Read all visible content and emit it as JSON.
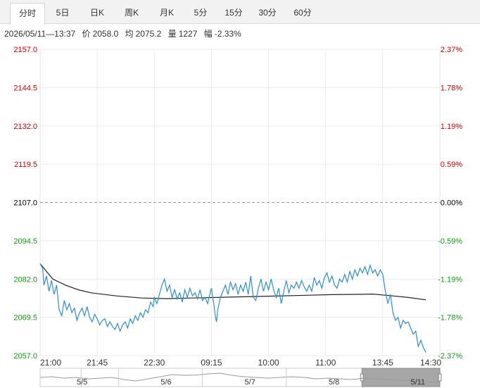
{
  "tabs": [
    {
      "label": "分时",
      "active": true
    },
    {
      "label": "5日",
      "active": false
    },
    {
      "label": "日K",
      "active": false
    },
    {
      "label": "周K",
      "active": false
    },
    {
      "label": "月K",
      "active": false
    },
    {
      "label": "5分",
      "active": false
    },
    {
      "label": "15分",
      "active": false
    },
    {
      "label": "30分",
      "active": false
    },
    {
      "label": "60分",
      "active": false
    }
  ],
  "info": {
    "datetime": "2026/05/11—13:37",
    "price_label": "价",
    "price": "2058.0",
    "avg_label": "均",
    "avg": "2075.2",
    "volume_label": "量",
    "volume": "1227",
    "change_label": "幅",
    "change": "-2.33%"
  },
  "colors": {
    "up": "#e00000",
    "down": "#1a9a1a",
    "neutral": "#000000",
    "price_line": "#2b8fd6",
    "avg_line": "#222222"
  },
  "chart_data": {
    "type": "line",
    "prev_close": 2107.0,
    "ylim": [
      2057.0,
      2157.0
    ],
    "y_ticks": [
      {
        "value": 2157.0,
        "label": "2157.0",
        "pct": "2.37%"
      },
      {
        "value": 2144.5,
        "label": "2144.5",
        "pct": "1.78%"
      },
      {
        "value": 2132.0,
        "label": "2132.0",
        "pct": "1.19%"
      },
      {
        "value": 2119.5,
        "label": "2119.5",
        "pct": "0.59%"
      },
      {
        "value": 2107.0,
        "label": "2107.0",
        "pct": "0.00%"
      },
      {
        "value": 2094.5,
        "label": "2094.5",
        "pct": "-0.59%"
      },
      {
        "value": 2082.0,
        "label": "2082.0",
        "pct": "-1.19%"
      },
      {
        "value": 2069.5,
        "label": "2069.5",
        "pct": "-1.78%"
      },
      {
        "value": 2057.0,
        "label": "2057.0",
        "pct": "-2.37%"
      }
    ],
    "x_ticks": [
      "21:00",
      "21:45",
      "22:30",
      "09:15",
      "10:00",
      "11:00",
      "13:45",
      "14:30"
    ],
    "x_tick_index": [
      0,
      45,
      90,
      135,
      180,
      225,
      270,
      315
    ],
    "x_max": 315,
    "series": [
      {
        "role": "price",
        "points": [
          [
            0,
            2087.0
          ],
          [
            2,
            2085.5
          ],
          [
            3,
            2080.0
          ],
          [
            5,
            2083.0
          ],
          [
            7,
            2078.0
          ],
          [
            9,
            2081.5
          ],
          [
            11,
            2077.0
          ],
          [
            13,
            2080.0
          ],
          [
            15,
            2072.0
          ],
          [
            17,
            2070.0
          ],
          [
            19,
            2075.0
          ],
          [
            21,
            2072.0
          ],
          [
            23,
            2074.0
          ],
          [
            25,
            2071.0
          ],
          [
            27,
            2072.5
          ],
          [
            29,
            2068.5
          ],
          [
            31,
            2071.0
          ],
          [
            33,
            2072.5
          ],
          [
            35,
            2070.0
          ],
          [
            37,
            2073.0
          ],
          [
            39,
            2069.5
          ],
          [
            41,
            2068.0
          ],
          [
            43,
            2070.5
          ],
          [
            45,
            2069.0
          ],
          [
            47,
            2067.0
          ],
          [
            49,
            2068.5
          ],
          [
            51,
            2069.0
          ],
          [
            53,
            2066.5
          ],
          [
            55,
            2068.0
          ],
          [
            57,
            2066.5
          ],
          [
            59,
            2065.5
          ],
          [
            61,
            2067.5
          ],
          [
            63,
            2065.0
          ],
          [
            65,
            2067.0
          ],
          [
            67,
            2068.0
          ],
          [
            69,
            2066.0
          ],
          [
            71,
            2069.0
          ],
          [
            73,
            2067.5
          ],
          [
            75,
            2070.0
          ],
          [
            77,
            2068.5
          ],
          [
            79,
            2071.0
          ],
          [
            81,
            2069.5
          ],
          [
            83,
            2072.0
          ],
          [
            85,
            2071.0
          ],
          [
            87,
            2074.5
          ],
          [
            89,
            2073.0
          ],
          [
            90,
            2076.0
          ],
          [
            92,
            2074.0
          ],
          [
            94,
            2077.0
          ],
          [
            96,
            2080.0
          ],
          [
            98,
            2082.0
          ],
          [
            100,
            2078.0
          ],
          [
            102,
            2080.0
          ],
          [
            104,
            2076.0
          ],
          [
            106,
            2078.5
          ],
          [
            108,
            2075.5
          ],
          [
            110,
            2077.5
          ],
          [
            112,
            2074.5
          ],
          [
            114,
            2078.5
          ],
          [
            116,
            2076.0
          ],
          [
            118,
            2079.0
          ],
          [
            120,
            2076.5
          ],
          [
            122,
            2077.5
          ],
          [
            124,
            2075.5
          ],
          [
            126,
            2078.5
          ],
          [
            128,
            2075.0
          ],
          [
            130,
            2076.0
          ],
          [
            132,
            2074.0
          ],
          [
            134,
            2077.5
          ],
          [
            135,
            2079.0
          ],
          [
            136,
            2076.0
          ],
          [
            137,
            2073.5
          ],
          [
            138,
            2070.0
          ],
          [
            139,
            2068.0
          ],
          [
            140,
            2072.0
          ],
          [
            142,
            2076.0
          ],
          [
            144,
            2078.0
          ],
          [
            146,
            2080.0
          ],
          [
            148,
            2077.0
          ],
          [
            150,
            2081.0
          ],
          [
            152,
            2078.5
          ],
          [
            154,
            2080.5
          ],
          [
            156,
            2077.0
          ],
          [
            158,
            2080.0
          ],
          [
            160,
            2078.0
          ],
          [
            162,
            2081.0
          ],
          [
            164,
            2077.0
          ],
          [
            166,
            2083.0
          ],
          [
            168,
            2076.0
          ],
          [
            170,
            2075.0
          ],
          [
            172,
            2079.0
          ],
          [
            174,
            2082.0
          ],
          [
            176,
            2078.0
          ],
          [
            178,
            2081.0
          ],
          [
            180,
            2078.5
          ],
          [
            182,
            2082.0
          ],
          [
            184,
            2078.5
          ],
          [
            186,
            2076.0
          ],
          [
            188,
            2079.0
          ],
          [
            190,
            2074.0
          ],
          [
            192,
            2078.0
          ],
          [
            194,
            2081.5
          ],
          [
            196,
            2077.5
          ],
          [
            198,
            2080.0
          ],
          [
            200,
            2079.0
          ],
          [
            202,
            2081.0
          ],
          [
            204,
            2079.0
          ],
          [
            206,
            2081.5
          ],
          [
            208,
            2079.5
          ],
          [
            210,
            2078.0
          ],
          [
            212,
            2080.0
          ],
          [
            214,
            2078.0
          ],
          [
            216,
            2082.5
          ],
          [
            218,
            2080.0
          ],
          [
            220,
            2081.5
          ],
          [
            222,
            2079.0
          ],
          [
            224,
            2082.5
          ],
          [
            226,
            2084.0
          ],
          [
            228,
            2081.0
          ],
          [
            230,
            2083.0
          ],
          [
            232,
            2080.0
          ],
          [
            234,
            2079.0
          ],
          [
            236,
            2082.0
          ],
          [
            238,
            2081.0
          ],
          [
            240,
            2083.5
          ],
          [
            242,
            2081.0
          ],
          [
            244,
            2084.5
          ],
          [
            246,
            2082.0
          ],
          [
            248,
            2085.0
          ],
          [
            250,
            2083.0
          ],
          [
            252,
            2085.5
          ],
          [
            254,
            2084.0
          ],
          [
            256,
            2086.0
          ],
          [
            258,
            2083.5
          ],
          [
            260,
            2086.5
          ],
          [
            262,
            2084.0
          ],
          [
            264,
            2085.0
          ],
          [
            266,
            2083.0
          ],
          [
            268,
            2085.0
          ],
          [
            270,
            2083.5
          ],
          [
            272,
            2078.0
          ],
          [
            274,
            2074.0
          ],
          [
            276,
            2077.0
          ],
          [
            278,
            2071.0
          ],
          [
            280,
            2068.5
          ],
          [
            282,
            2069.5
          ],
          [
            284,
            2066.0
          ],
          [
            286,
            2068.5
          ],
          [
            288,
            2067.5
          ],
          [
            290,
            2068.0
          ],
          [
            292,
            2066.0
          ],
          [
            294,
            2064.0
          ],
          [
            296,
            2065.0
          ],
          [
            298,
            2060.0
          ],
          [
            300,
            2062.0
          ],
          [
            302,
            2059.5
          ],
          [
            304,
            2058.0
          ]
        ]
      },
      {
        "role": "average",
        "points": [
          [
            0,
            2087.0
          ],
          [
            10,
            2082.0
          ],
          [
            20,
            2080.0
          ],
          [
            30,
            2078.5
          ],
          [
            40,
            2077.5
          ],
          [
            60,
            2076.5
          ],
          [
            80,
            2075.8
          ],
          [
            100,
            2075.6
          ],
          [
            120,
            2075.8
          ],
          [
            150,
            2076.1
          ],
          [
            180,
            2076.4
          ],
          [
            210,
            2076.7
          ],
          [
            230,
            2076.9
          ],
          [
            250,
            2077.0
          ],
          [
            262,
            2077.1
          ],
          [
            275,
            2076.6
          ],
          [
            290,
            2076.0
          ],
          [
            304,
            2075.2
          ]
        ]
      }
    ],
    "day_labels": [
      {
        "label": "5/5",
        "x": 2.5
      },
      {
        "label": "5/6",
        "x": 23.5
      },
      {
        "label": "5/7",
        "x": 44.5
      },
      {
        "label": "5/8",
        "x": 65.5
      },
      {
        "label": "5/11",
        "x": 86.5
      }
    ],
    "navigator": {
      "selected_label": "5/11",
      "overview": [
        [
          0,
          0.55
        ],
        [
          3,
          0.6
        ],
        [
          6,
          0.5
        ],
        [
          9,
          0.55
        ],
        [
          12,
          0.45
        ],
        [
          15,
          0.5
        ],
        [
          18,
          0.55
        ],
        [
          21,
          0.4
        ],
        [
          24,
          0.3
        ],
        [
          27,
          0.45
        ],
        [
          30,
          0.6
        ],
        [
          33,
          0.75
        ],
        [
          36,
          0.7
        ],
        [
          39,
          0.72
        ],
        [
          42,
          0.8
        ],
        [
          45,
          0.85
        ],
        [
          48,
          0.7
        ],
        [
          51,
          0.6
        ],
        [
          54,
          0.55
        ],
        [
          57,
          0.5
        ],
        [
          60,
          0.55
        ],
        [
          63,
          0.6
        ],
        [
          66,
          0.55
        ],
        [
          69,
          0.45
        ],
        [
          72,
          0.5
        ],
        [
          75,
          0.45
        ],
        [
          78,
          0.4
        ],
        [
          81,
          0.5
        ],
        [
          84,
          0.45
        ],
        [
          87,
          0.4
        ],
        [
          90,
          0.35
        ],
        [
          93,
          0.3
        ],
        [
          96,
          0.25
        ],
        [
          100,
          0.2
        ]
      ],
      "selected_range": [
        80.5,
        100
      ]
    }
  }
}
